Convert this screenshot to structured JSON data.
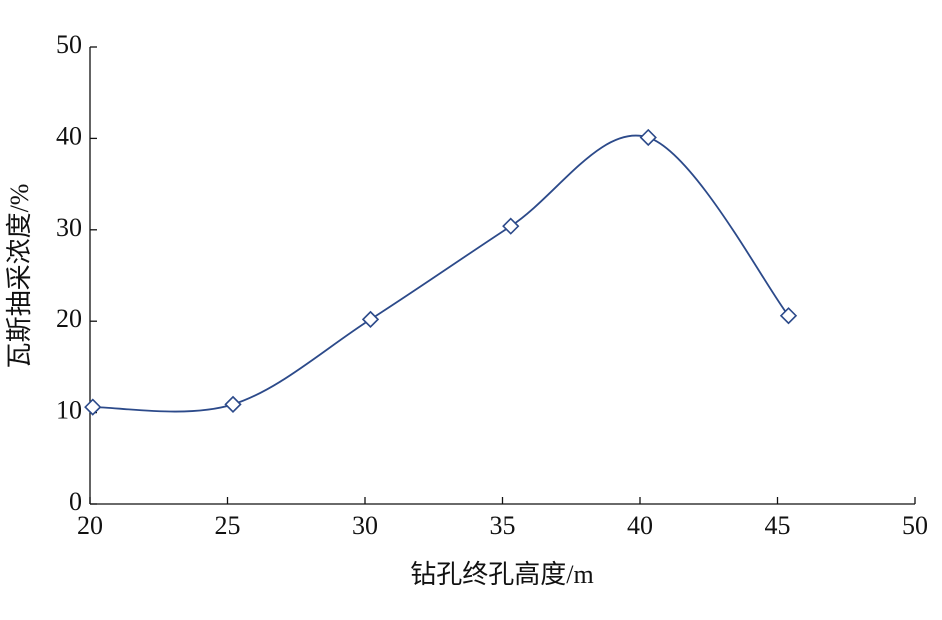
{
  "chart_data": {
    "type": "line",
    "x_label": "钻孔终孔高度/m",
    "y_label": "瓦斯抽采浓度/%",
    "x": [
      20.1,
      25.2,
      30.2,
      35.3,
      40.3,
      45.4
    ],
    "series": [
      {
        "color": "#2c4a8a",
        "values": [
          10.6,
          10.9,
          20.2,
          30.4,
          40.1,
          20.6
        ]
      }
    ],
    "xlim": [
      20,
      50
    ],
    "xticks": [
      20,
      25,
      30,
      35,
      40,
      45,
      50
    ],
    "ylim": [
      0,
      50
    ],
    "yticks": [
      0,
      10,
      20,
      30,
      40,
      50
    ],
    "marker": "diamond",
    "smooth": true
  }
}
